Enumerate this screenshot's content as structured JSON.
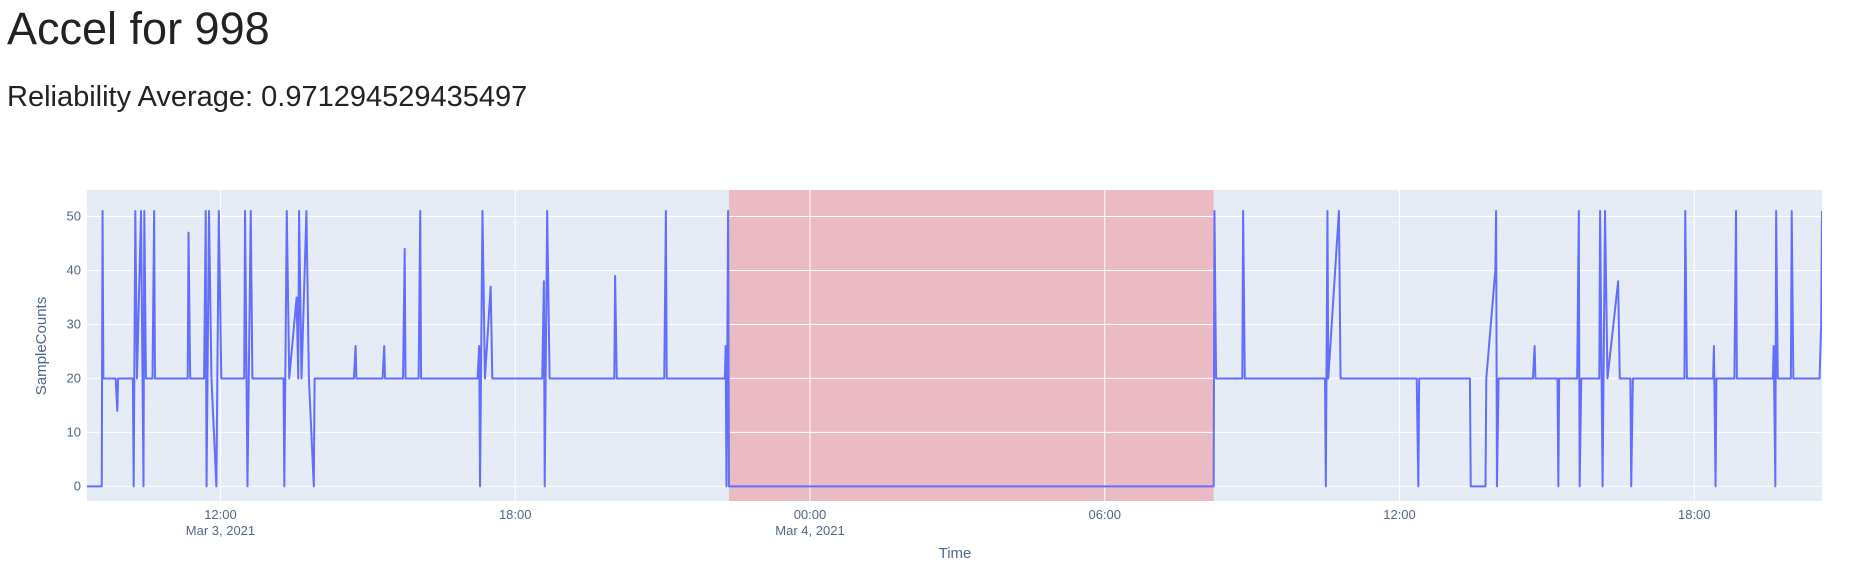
{
  "chart_data": {
    "type": "line",
    "title": "Accel for 998",
    "subtitle": "Reliability Average: 0.971294529435497",
    "xlabel": "Time",
    "ylabel": "SampleCounts",
    "background": "#e5ecf6",
    "grid": true,
    "xlim": [
      "2021-03-03 09:17",
      "2021-03-04 20:36"
    ],
    "ylim": [
      -2.7,
      54.9
    ],
    "yticks": [
      0,
      10,
      20,
      30,
      40,
      50
    ],
    "xticks": [
      {
        "value": "2021-03-03 12:00",
        "label": "12:00"
      },
      {
        "value": "2021-03-03 18:00",
        "label": "18:00"
      },
      {
        "value": "2021-03-04 00:00",
        "label": "00:00"
      },
      {
        "value": "2021-03-04 06:00",
        "label": "06:00"
      },
      {
        "value": "2021-03-04 12:00",
        "label": "12:00"
      },
      {
        "value": "2021-03-04 18:00",
        "label": "18:00"
      }
    ],
    "xtick_dates": [
      {
        "value": "2021-03-03 12:00",
        "label": "Mar 3, 2021"
      },
      {
        "value": "2021-03-04 00:00",
        "label": "Mar 4, 2021"
      }
    ],
    "shaded_regions": [
      {
        "x0": "2021-03-03 22:21",
        "x1": "2021-03-04 08:13",
        "color": "#eabbc3"
      }
    ],
    "series": [
      {
        "color": "#636efa",
        "x": [
          "2021-03-03 09:17",
          "2021-03-03 09:35",
          "2021-03-03 09:36",
          "2021-03-03 09:37",
          "2021-03-03 09:52",
          "2021-03-03 09:54",
          "2021-03-03 09:55",
          "2021-03-03 10:13",
          "2021-03-03 10:14",
          "2021-03-03 10:16",
          "2021-03-03 10:18",
          "2021-03-03 10:23",
          "2021-03-03 10:26",
          "2021-03-03 10:27",
          "2021-03-03 10:29",
          "2021-03-03 10:37",
          "2021-03-03 10:39",
          "2021-03-03 10:40",
          "2021-03-03 11:20",
          "2021-03-03 11:21",
          "2021-03-03 11:23",
          "2021-03-03 11:40",
          "2021-03-03 11:42",
          "2021-03-03 11:43",
          "2021-03-03 11:46",
          "2021-03-03 11:49",
          "2021-03-03 11:55",
          "2021-03-03 11:58",
          "2021-03-03 12:01",
          "2021-03-03 12:29",
          "2021-03-03 12:30",
          "2021-03-03 12:33",
          "2021-03-03 12:37",
          "2021-03-03 12:39",
          "2021-03-03 13:17",
          "2021-03-03 13:18",
          "2021-03-03 13:21",
          "2021-03-03 13:24",
          "2021-03-03 13:33",
          "2021-03-03 13:35",
          "2021-03-03 13:36",
          "2021-03-03 13:39",
          "2021-03-03 13:45",
          "2021-03-03 13:48",
          "2021-03-03 13:54",
          "2021-03-03 13:55",
          "2021-03-03 14:43",
          "2021-03-03 14:45",
          "2021-03-03 14:46",
          "2021-03-03 15:18",
          "2021-03-03 15:20",
          "2021-03-03 15:21",
          "2021-03-03 15:43",
          "2021-03-03 15:45",
          "2021-03-03 15:46",
          "2021-03-03 16:02",
          "2021-03-03 16:04",
          "2021-03-03 16:05",
          "2021-03-03 17:14",
          "2021-03-03 17:16",
          "2021-03-03 17:17",
          "2021-03-03 17:20",
          "2021-03-03 17:23",
          "2021-03-03 17:30",
          "2021-03-03 17:32",
          "2021-03-03 18:33",
          "2021-03-03 18:35",
          "2021-03-03 18:36",
          "2021-03-03 18:39",
          "2021-03-03 18:42",
          "2021-03-03 20:01",
          "2021-03-03 20:02",
          "2021-03-03 20:04",
          "2021-03-03 21:02",
          "2021-03-03 21:04",
          "2021-03-03 21:05",
          "2021-03-03 22:16",
          "2021-03-03 22:17",
          "2021-03-03 22:18",
          "2021-03-03 22:20",
          "2021-03-03 22:21",
          "2021-03-04 08:13",
          "2021-03-04 08:14",
          "2021-03-04 08:16",
          "2021-03-04 08:48",
          "2021-03-04 08:49",
          "2021-03-04 08:51",
          "2021-03-04 10:29",
          "2021-03-04 10:30",
          "2021-03-04 10:32",
          "2021-03-04 10:33",
          "2021-03-04 10:46",
          "2021-03-04 10:48",
          "2021-03-04 12:21",
          "2021-03-04 12:23",
          "2021-03-04 12:24",
          "2021-03-04 13:26",
          "2021-03-04 13:27",
          "2021-03-04 13:45",
          "2021-03-04 13:46",
          "2021-03-04 13:57",
          "2021-03-04 13:58",
          "2021-03-04 13:59",
          "2021-03-04 14:01",
          "2021-03-04 14:43",
          "2021-03-04 14:45",
          "2021-03-04 14:46",
          "2021-03-04 15:13",
          "2021-03-04 15:14",
          "2021-03-04 15:15",
          "2021-03-04 15:37",
          "2021-03-04 15:39",
          "2021-03-04 15:40",
          "2021-03-04 15:42",
          "2021-03-04 16:04",
          "2021-03-04 16:05",
          "2021-03-04 16:08",
          "2021-03-04 16:11",
          "2021-03-04 16:14",
          "2021-03-04 16:27",
          "2021-03-04 16:29",
          "2021-03-04 16:42",
          "2021-03-04 16:43",
          "2021-03-04 16:45",
          "2021-03-04 17:48",
          "2021-03-04 17:49",
          "2021-03-04 17:51",
          "2021-03-04 18:23",
          "2021-03-04 18:24",
          "2021-03-04 18:26",
          "2021-03-04 18:27",
          "2021-03-04 18:49",
          "2021-03-04 18:51",
          "2021-03-04 18:52",
          "2021-03-04 19:36",
          "2021-03-04 19:37",
          "2021-03-04 19:39",
          "2021-03-04 19:40",
          "2021-03-04 19:42",
          "2021-03-04 19:58",
          "2021-03-04 19:59",
          "2021-03-04 20:01",
          "2021-03-04 20:33",
          "2021-03-04 20:35",
          "2021-03-04 20:36"
        ],
        "values": [
          0,
          0,
          51,
          20,
          20,
          14,
          20,
          20,
          0,
          51,
          20,
          51,
          0,
          51,
          20,
          20,
          51,
          20,
          20,
          47,
          20,
          20,
          51,
          0,
          51,
          20,
          0,
          51,
          20,
          20,
          51,
          0,
          51,
          20,
          20,
          0,
          51,
          20,
          35,
          20,
          51,
          20,
          51,
          20,
          0,
          20,
          20,
          26,
          20,
          20,
          26,
          20,
          20,
          44,
          20,
          20,
          51,
          20,
          20,
          26,
          0,
          51,
          20,
          37,
          20,
          20,
          38,
          0,
          51,
          20,
          20,
          39,
          20,
          20,
          51,
          20,
          20,
          26,
          0,
          51,
          0,
          0,
          51,
          20,
          20,
          51,
          20,
          20,
          0,
          51,
          20,
          51,
          20,
          20,
          0,
          20,
          20,
          0,
          0,
          20,
          40,
          51,
          0,
          20,
          20,
          26,
          20,
          20,
          0,
          20,
          20,
          51,
          0,
          20,
          20,
          51,
          0,
          51,
          20,
          38,
          20,
          20,
          0,
          20,
          20,
          51,
          20,
          20,
          26,
          0,
          20,
          20,
          51,
          20,
          20,
          26,
          0,
          51,
          20,
          20,
          51,
          20,
          20,
          30,
          51
        ]
      }
    ]
  }
}
